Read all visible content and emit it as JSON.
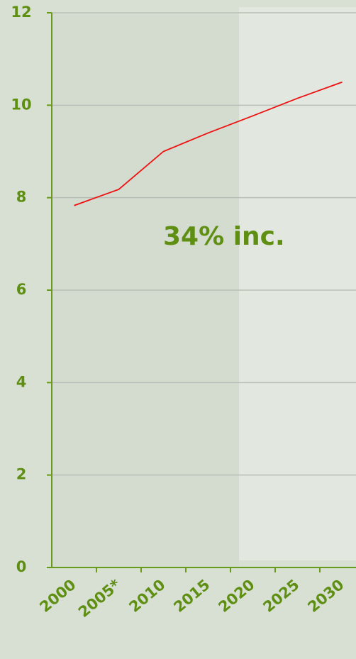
{
  "chart_data": {
    "type": "line",
    "annotation": "34% inc.",
    "categories": [
      "2000",
      "2005*",
      "2010",
      "2015",
      "2020",
      "2025",
      "2030"
    ],
    "values": [
      7.83,
      8.18,
      9.0,
      9.4,
      9.77,
      10.15,
      10.5
    ],
    "color": "#ee1111",
    "ylim": [
      0,
      12
    ],
    "yticks": [
      0,
      2,
      4,
      6,
      8,
      10,
      12
    ],
    "grid": true
  }
}
